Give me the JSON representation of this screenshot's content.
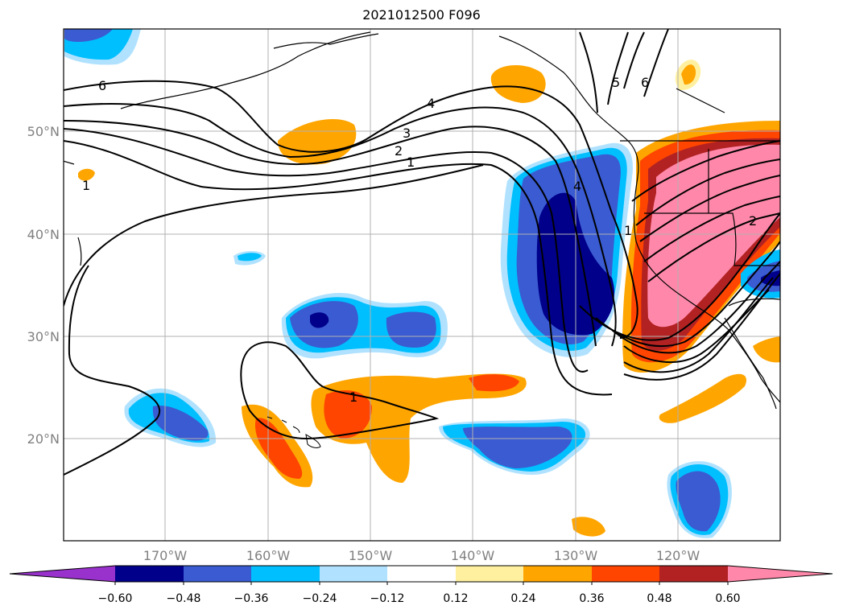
{
  "title": "2021012500 F096",
  "lat_labels": [
    "50°N",
    "40°N",
    "30°N",
    "20°N"
  ],
  "lon_labels": [
    "170°W",
    "160°W",
    "150°W",
    "140°W",
    "130°W",
    "120°W"
  ],
  "contour_labels": [
    "6",
    "4",
    "3",
    "2",
    "1",
    "1",
    "1",
    "4",
    "5",
    "6",
    "1",
    "2"
  ],
  "colorbar": {
    "ticks": [
      "−0.60",
      "−0.48",
      "−0.36",
      "−0.24",
      "−0.12",
      "0.12",
      "0.24",
      "0.36",
      "0.48",
      "0.60"
    ],
    "colors": [
      "#9932cc",
      "#00008b",
      "#3a5bd1",
      "#00bfff",
      "#b0e2ff",
      "#ffffff",
      "#fff0a0",
      "#ffa500",
      "#ff4500",
      "#b22222",
      "#ff88aa"
    ]
  }
}
